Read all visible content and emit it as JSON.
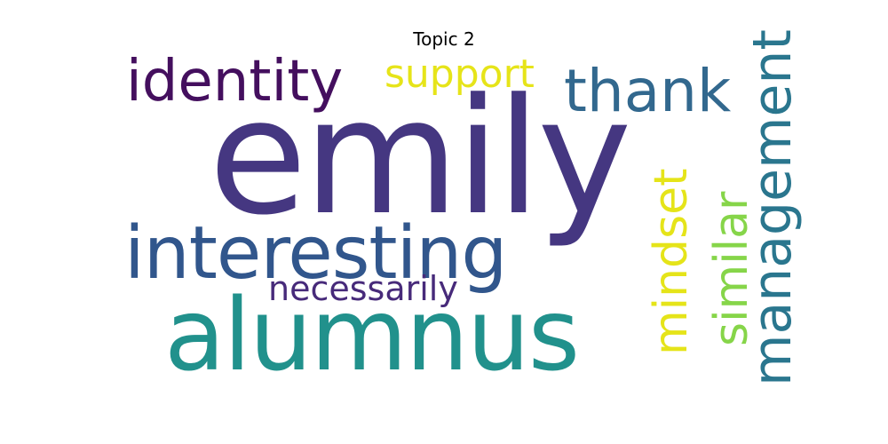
{
  "title": "Topic 2",
  "words": {
    "emily": {
      "text": "emily",
      "color": "#453781"
    },
    "alumnus": {
      "text": "alumnus",
      "color": "#21918c"
    },
    "interesting": {
      "text": "interesting",
      "color": "#31568c"
    },
    "identity": {
      "text": "identity",
      "color": "#440f5e"
    },
    "support": {
      "text": "support",
      "color": "#e6e419"
    },
    "thank": {
      "text": "thank",
      "color": "#32688e"
    },
    "management": {
      "text": "management",
      "color": "#2a768e"
    },
    "similar": {
      "text": "similar",
      "color": "#86d549"
    },
    "mindset": {
      "text": "mindset",
      "color": "#e5e419"
    },
    "necessarily": {
      "text": "necessarily",
      "color": "#472a7a"
    }
  }
}
